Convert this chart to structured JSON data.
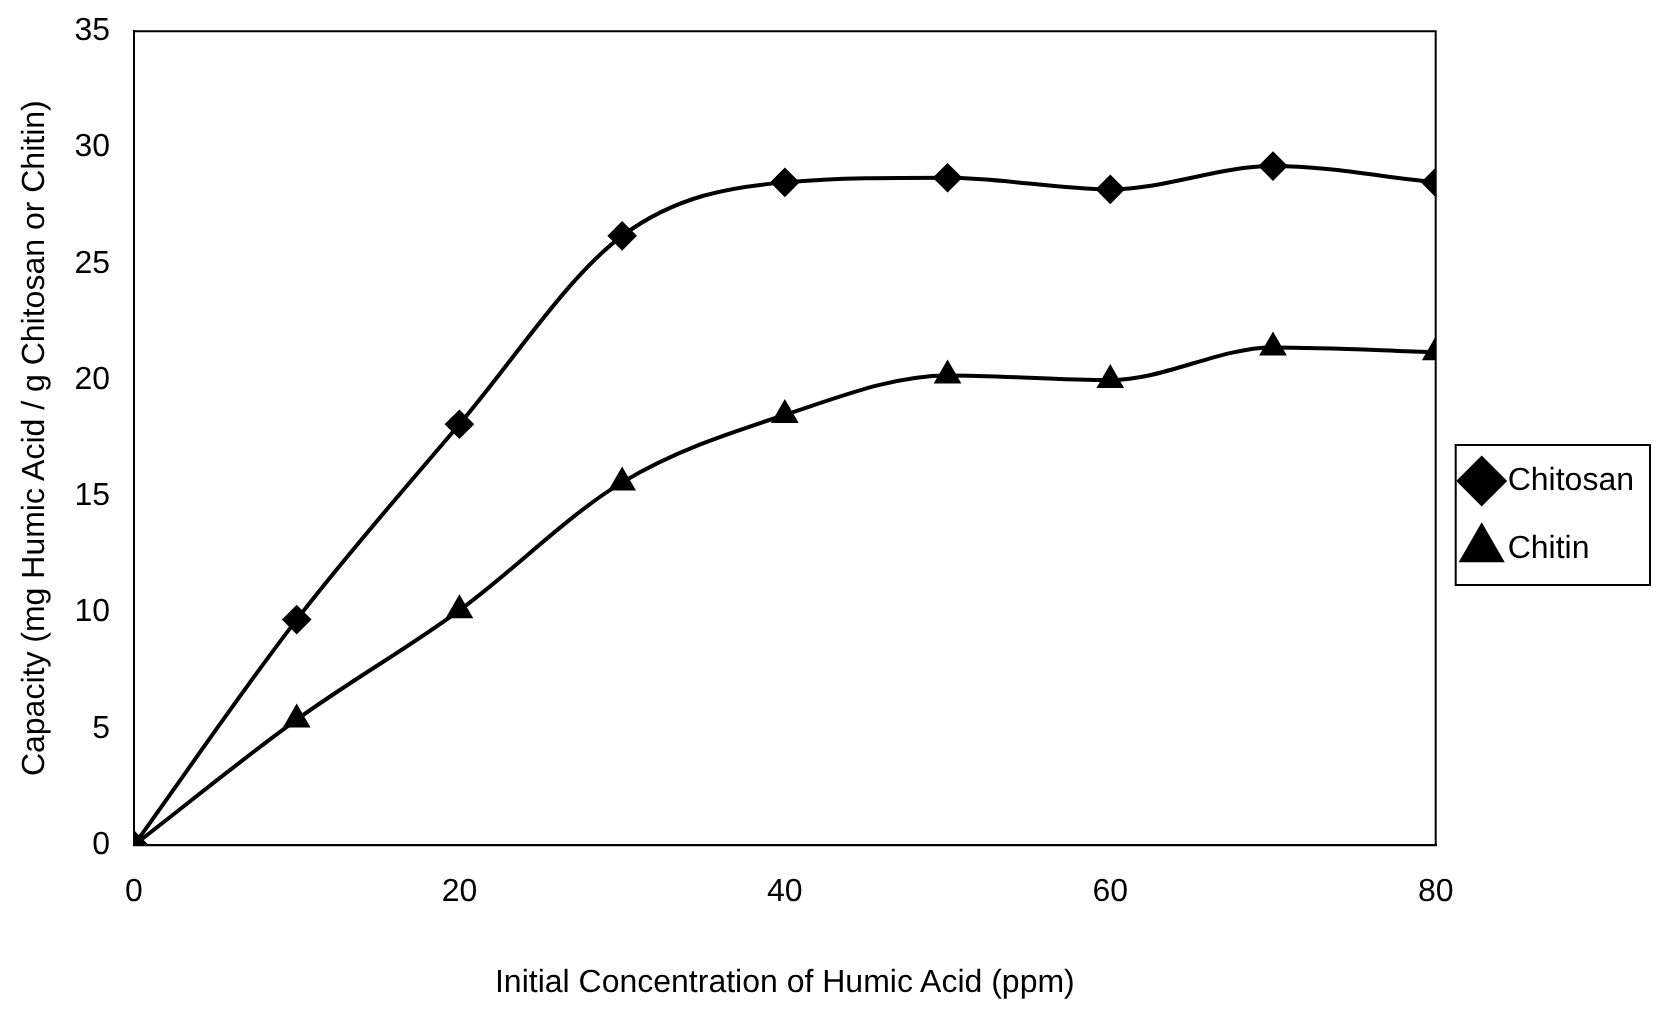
{
  "chart_data": {
    "type": "line",
    "xlabel": "Initial Concentration of Humic Acid (ppm)",
    "ylabel": "Capacity (mg Humic Acid / g Chitosan or Chitin)",
    "x": [
      0,
      10,
      20,
      30,
      40,
      50,
      60,
      70,
      80
    ],
    "series": [
      {
        "name": "Chitosan",
        "color": "#000000",
        "marker": "diamond",
        "values": [
          0,
          9.7,
          18.1,
          26.2,
          28.5,
          28.7,
          28.2,
          29.2,
          28.5
        ]
      },
      {
        "name": "Chitin",
        "color": "#000000",
        "marker": "triangle",
        "values": [
          0,
          5.4,
          10.1,
          15.6,
          18.5,
          20.2,
          20.0,
          21.4,
          21.2
        ]
      }
    ],
    "xlim": [
      0,
      80
    ],
    "xticks": [
      0,
      20,
      40,
      60,
      80
    ],
    "ylim": [
      0,
      35
    ],
    "yticks": [
      0,
      5,
      10,
      15,
      20,
      25,
      30,
      35
    ],
    "grid": false,
    "legend": "right",
    "line_style": "solid"
  }
}
